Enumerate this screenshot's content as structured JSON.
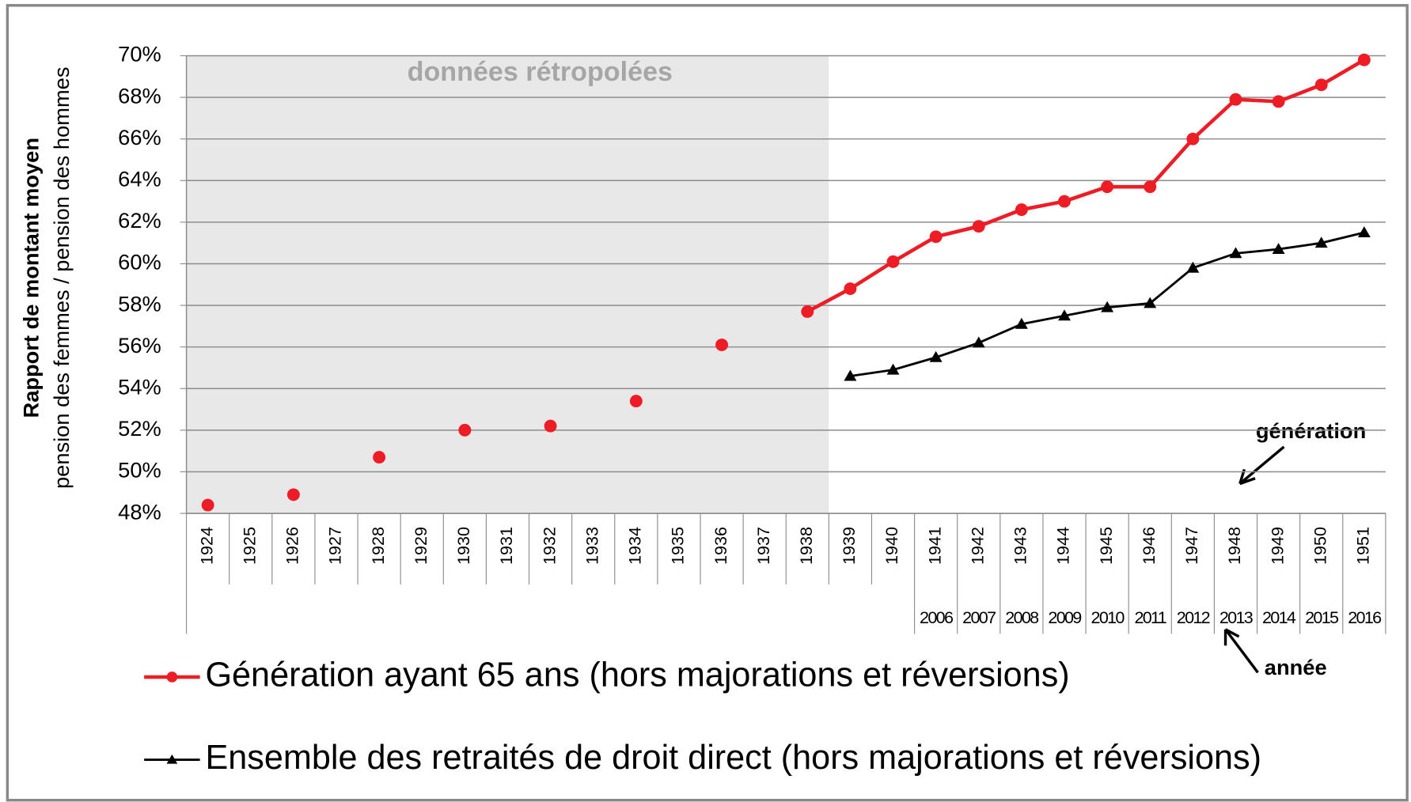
{
  "chart_data": {
    "type": "line",
    "ylabel": [
      "Rapport de montant moyen",
      "pension des femmes / pension des hommes"
    ],
    "categories": [
      "1924",
      "1925",
      "1926",
      "1927",
      "1928",
      "1929",
      "1930",
      "1931",
      "1932",
      "1933",
      "1934",
      "1935",
      "1936",
      "1937",
      "1938",
      "1939",
      "1940",
      "1941",
      "1942",
      "1943",
      "1944",
      "1945",
      "1946",
      "1947",
      "1948",
      "1949",
      "1950",
      "1951"
    ],
    "categories2": [
      null,
      null,
      null,
      null,
      null,
      null,
      null,
      null,
      null,
      null,
      null,
      null,
      null,
      null,
      null,
      null,
      null,
      "2006",
      "2007",
      "2008",
      "2009",
      "2010",
      "2011",
      "2012",
      "2013",
      "2014",
      "2015",
      "2016"
    ],
    "series": [
      {
        "name": "Génération ayant 65 ans (hors majorations et réversions)",
        "color": "#ee1c25",
        "marker": "circle",
        "values": [
          48.4,
          null,
          48.9,
          null,
          50.7,
          null,
          52.0,
          null,
          52.2,
          null,
          53.4,
          null,
          56.1,
          null,
          57.7,
          58.8,
          60.1,
          61.3,
          61.8,
          62.6,
          63.0,
          63.7,
          63.7,
          66.0,
          67.9,
          67.8,
          68.6,
          69.8
        ]
      },
      {
        "name": "Ensemble des retraités de droit direct (hors majorations et réversions)",
        "color": "#000000",
        "marker": "triangle",
        "values": [
          null,
          null,
          null,
          null,
          null,
          null,
          null,
          null,
          null,
          null,
          null,
          null,
          null,
          null,
          null,
          54.6,
          54.9,
          55.5,
          56.2,
          57.1,
          57.5,
          57.9,
          58.1,
          59.8,
          60.5,
          60.7,
          61.0,
          61.5
        ]
      }
    ],
    "ylim": [
      48,
      70
    ],
    "yticks": [
      {
        "value": 48,
        "label": "48%"
      },
      {
        "value": 50,
        "label": "50%"
      },
      {
        "value": 52,
        "label": "52%"
      },
      {
        "value": 54,
        "label": "54%"
      },
      {
        "value": 56,
        "label": "56%"
      },
      {
        "value": 58,
        "label": "58%"
      },
      {
        "value": 60,
        "label": "60%"
      },
      {
        "value": 62,
        "label": "62%"
      },
      {
        "value": 64,
        "label": "64%"
      },
      {
        "value": 66,
        "label": "66%"
      },
      {
        "value": 68,
        "label": "68%"
      },
      {
        "value": 70,
        "label": "70%"
      }
    ],
    "grid": true,
    "annotations": [
      "données rétropolées",
      "génération",
      "année"
    ]
  }
}
